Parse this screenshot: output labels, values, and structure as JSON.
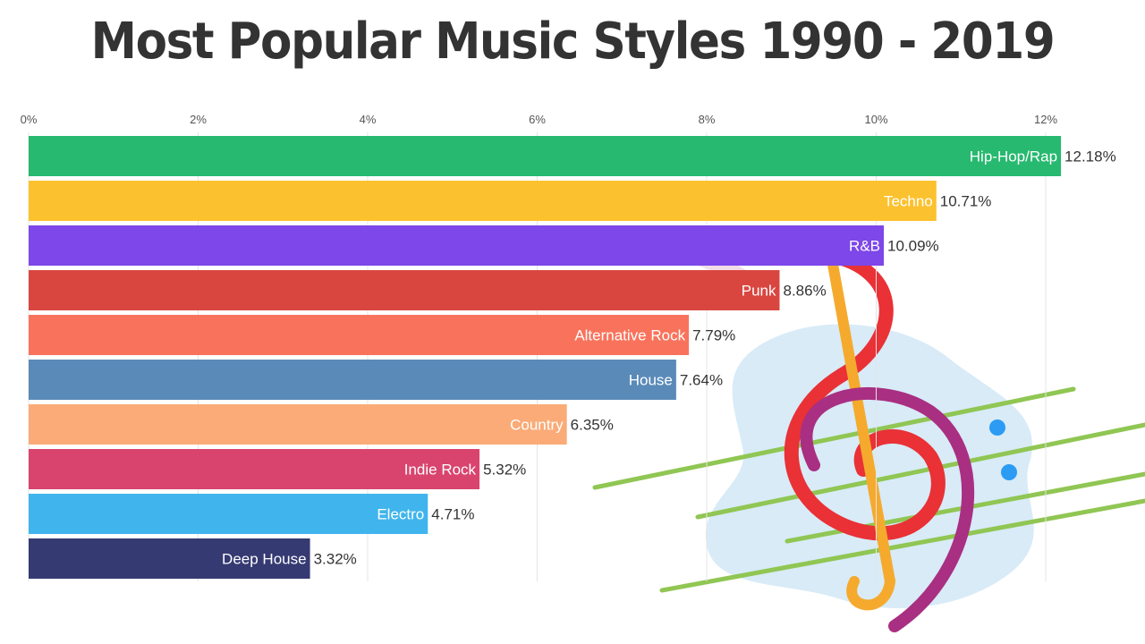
{
  "chart_data": {
    "type": "bar",
    "orientation": "horizontal",
    "title": "Most Popular Music Styles 1990 - 2019",
    "categories": [
      "Hip-Hop/Rap",
      "Techno",
      "R&B",
      "Punk",
      "Alternative Rock",
      "House",
      "Country",
      "Indie Rock",
      "Electro",
      "Deep House"
    ],
    "values": [
      12.18,
      10.71,
      10.09,
      8.86,
      7.79,
      7.64,
      6.35,
      5.32,
      4.71,
      3.32
    ],
    "value_labels": [
      "12.18%",
      "10.71%",
      "10.09%",
      "8.86%",
      "7.79%",
      "7.64%",
      "6.35%",
      "5.32%",
      "4.71%",
      "3.32%"
    ],
    "colors": [
      "#26b96f",
      "#fcc12e",
      "#7d47e9",
      "#d94640",
      "#f9735c",
      "#5a8ab8",
      "#fbab77",
      "#d9446e",
      "#40b5ed",
      "#353a73"
    ],
    "x_ticks": [
      0,
      2,
      4,
      6,
      8,
      10,
      12
    ],
    "x_tick_labels": [
      "0%",
      "2%",
      "4%",
      "6%",
      "8%",
      "10%",
      "12%"
    ],
    "xlim": [
      0,
      12.5
    ],
    "grid": true,
    "xlabel": "",
    "ylabel": ""
  },
  "decoration": {
    "icon": "music-notes-icon"
  }
}
